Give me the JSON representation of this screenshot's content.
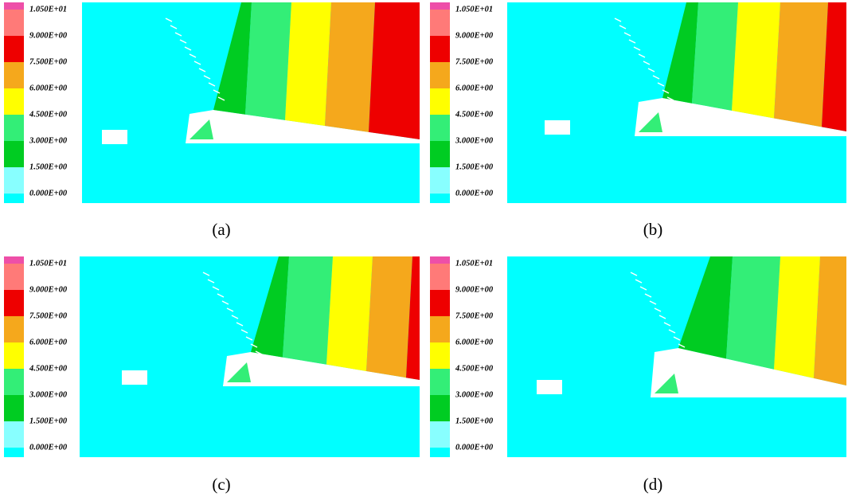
{
  "legend": {
    "labels": [
      "1.050E+01",
      "9.000E+00",
      "7.500E+00",
      "6.000E+00",
      "4.500E+00",
      "3.000E+00",
      "1.500E+00",
      "0.000E+00"
    ],
    "colors": [
      "#ee4fa8",
      "#ff7a78",
      "#ee0000",
      "#f5a81c",
      "#ffff00",
      "#33ee77",
      "#00cc22",
      "#88ffff",
      "#00ffff"
    ]
  },
  "panels": [
    {
      "label": "(a)"
    },
    {
      "label": "(b)"
    },
    {
      "label": "(c)"
    },
    {
      "label": "(d)"
    }
  ]
}
